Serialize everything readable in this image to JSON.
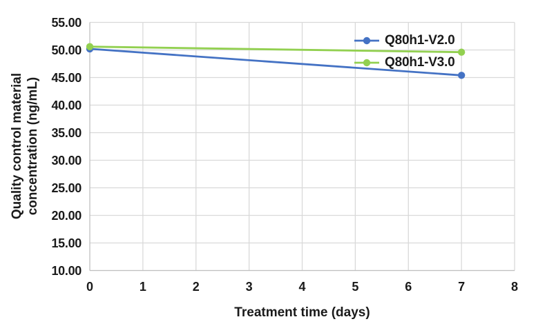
{
  "chart_data": {
    "type": "line",
    "title": "",
    "xlabel": "Treatment time (days)",
    "ylabel_line1": "Quality control material",
    "ylabel_line2": "concentration (ng/mL)",
    "x": [
      0,
      7
    ],
    "series": [
      {
        "name": "Q80h1-V2.0",
        "color": "#4472C4",
        "values": [
          50.2,
          45.4
        ]
      },
      {
        "name": "Q80h1-V3.0",
        "color": "#92D050",
        "values": [
          50.6,
          49.6
        ]
      }
    ],
    "xlim": [
      0,
      8
    ],
    "ylim": [
      10,
      55
    ],
    "x_ticks": [
      "0",
      "1",
      "2",
      "3",
      "4",
      "5",
      "6",
      "7",
      "8"
    ],
    "y_ticks": [
      "55.00",
      "50.00",
      "45.00",
      "40.00",
      "35.00",
      "30.00",
      "25.00",
      "20.00",
      "15.00",
      "10.00"
    ],
    "grid": true,
    "legend_position": "inside-top-right",
    "colors": {
      "gridline": "#D9D9D9",
      "axis_line": "#BFBFBF",
      "text": "#1a1a1a",
      "background": "#FFFFFF"
    }
  }
}
